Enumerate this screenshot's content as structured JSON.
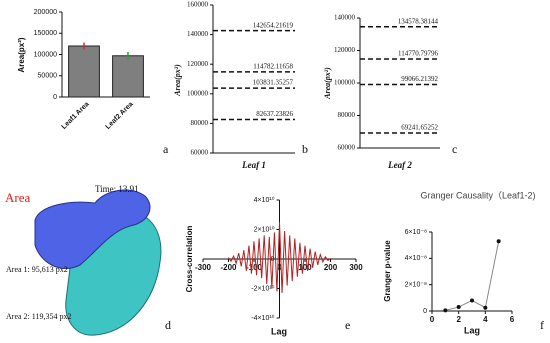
{
  "chart_data": [
    {
      "type": "bar",
      "panel_label": "a",
      "y_label": "Area(px²)",
      "categories": [
        "Leaf1 Area",
        "Leaf2 Area"
      ],
      "values": [
        120000,
        97000
      ],
      "errors": [
        8000,
        9000
      ],
      "point_colors": [
        "#d62728",
        "#2ca02c"
      ],
      "color": "#7f7f7f",
      "ylim": [
        0,
        200000
      ],
      "yticks": [
        0,
        50000,
        100000,
        150000,
        200000
      ]
    },
    {
      "type": "hlines",
      "panel_label": "b",
      "x_label": "Leaf 1",
      "y_label": "Area(px²)",
      "hlines": [
        142654.21619,
        114782.11658,
        103831.35257,
        82637.23826
      ],
      "ylim": [
        60000,
        160000
      ],
      "yticks": [
        60000,
        80000,
        100000,
        120000,
        140000,
        160000
      ]
    },
    {
      "type": "hlines",
      "panel_label": "c",
      "x_label": "Leaf 2",
      "y_label": "Area(px²)",
      "hlines": [
        134578.38144,
        114770.79796,
        99066.21392,
        69241.65252
      ],
      "ylim": [
        60000,
        140000
      ],
      "yticks": [
        60000,
        80000,
        100000,
        120000,
        140000
      ]
    },
    {
      "type": "line",
      "panel_label": "e",
      "x_label": "Lag",
      "y_label": "Cross-correlation",
      "color": "#b22222",
      "x": [
        -200,
        -190,
        -180,
        -170,
        -160,
        -150,
        -140,
        -130,
        -120,
        -110,
        -100,
        -90,
        -80,
        -70,
        -60,
        -50,
        -40,
        -30,
        -20,
        -10,
        0,
        10,
        20,
        30,
        40,
        50,
        60,
        70,
        80,
        90,
        100,
        110,
        120,
        130,
        140,
        150,
        160,
        170,
        180,
        190,
        200
      ],
      "values": [
        1000000000.0,
        -1500000000.0,
        2000000000.0,
        -3000000000.0,
        4000000000.0,
        -5000000000.0,
        6000000000.0,
        -8000000000.0,
        9000000000.0,
        -10000000000.0,
        12000000000.0,
        -11000000000.0,
        14000000000.0,
        -13000000000.0,
        16000000000.0,
        -17000000000.0,
        15000000000.0,
        -20000000000.0,
        18000000000.0,
        -22000000000.0,
        25000000000.0,
        -23000000000.0,
        19000000000.0,
        -18000000000.0,
        16000000000.0,
        -15000000000.0,
        14000000000.0,
        -12000000000.0,
        11000000000.0,
        -10000000000.0,
        9000000000.0,
        -8000000000.0,
        7000000000.0,
        -6000000000.0,
        5000000000.0,
        -4000000000.0,
        3000000000.0,
        -2000000000.0,
        1500000000.0,
        -1000000000.0,
        500000000.0
      ],
      "xlim": [
        -300,
        300
      ],
      "xticks": [
        -300,
        -200,
        -100,
        0,
        100,
        200,
        300
      ],
      "ylim": [
        -40000000000.0,
        40000000000.0
      ],
      "yticks": [
        {
          "value": -40000000000.0,
          "label": "-4×10¹⁰"
        },
        {
          "value": -20000000000.0,
          "label": "-2×10¹⁰"
        },
        0,
        {
          "value": 20000000000.0,
          "label": "2×10¹⁰"
        },
        {
          "value": 40000000000.0,
          "label": "4×10¹⁰"
        }
      ]
    },
    {
      "type": "line",
      "panel_label": "f",
      "title": "Granger Causality（Leaf1-2)",
      "x_label": "Lag",
      "y_label": "Granger p-value",
      "color": "#888888",
      "x": [
        1,
        2,
        3,
        4,
        5
      ],
      "values": [
        5e-10,
        3e-09,
        8e-09,
        2.5e-09,
        5.3e-08
      ],
      "xlim": [
        0,
        6
      ],
      "xticks": [
        0,
        2,
        4,
        6
      ],
      "ylim": [
        0,
        6e-08
      ],
      "yticks": [
        0,
        {
          "value": 2e-08,
          "label": "2×10⁻⁸"
        },
        {
          "value": 4e-08,
          "label": "4×10⁻⁸"
        },
        {
          "value": 6e-08,
          "label": "6×10⁻⁸"
        }
      ]
    }
  ],
  "image_panel": {
    "title": "Area",
    "time": "Time: 13.91",
    "area1": "Area 1: 95,613 px2",
    "area2": "Area 2: 119,354 px2",
    "panel_label": "d"
  }
}
